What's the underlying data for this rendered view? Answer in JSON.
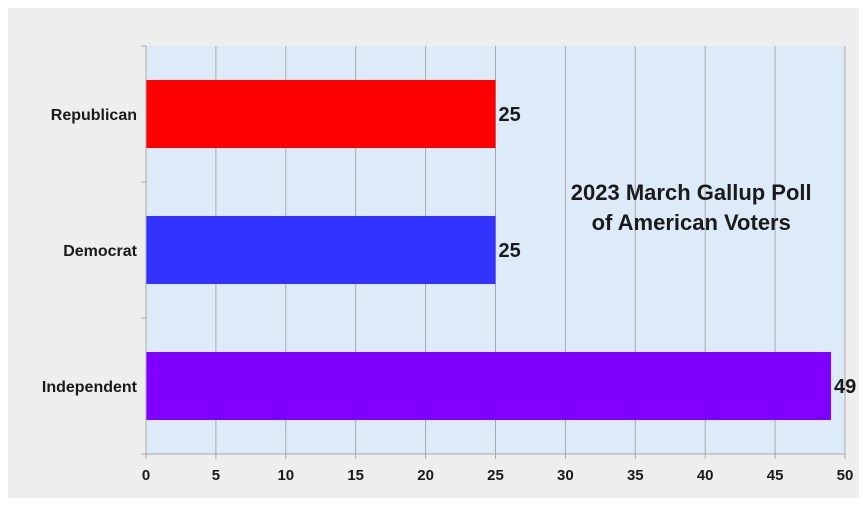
{
  "chart_data": {
    "type": "bar",
    "orientation": "horizontal",
    "title_lines": [
      "2023 March Gallup Poll",
      "of American Voters"
    ],
    "categories": [
      "Republican",
      "Democrat",
      "Independent"
    ],
    "values": [
      25,
      25,
      49
    ],
    "value_labels": [
      "25",
      "25",
      "49"
    ],
    "colors": [
      "#ff0000",
      "#3333ff",
      "#8000ff"
    ],
    "xlim": [
      0,
      50
    ],
    "xticks": [
      0,
      5,
      10,
      15,
      20,
      25,
      30,
      35,
      40,
      45,
      50
    ],
    "xtick_labels": [
      "0",
      "5",
      "10",
      "15",
      "20",
      "25",
      "30",
      "35",
      "40",
      "45",
      "50"
    ],
    "grid": "vertical",
    "plot_background": "#dcebf7",
    "title_placement": "inside-right",
    "xlabel": "",
    "ylabel": ""
  }
}
